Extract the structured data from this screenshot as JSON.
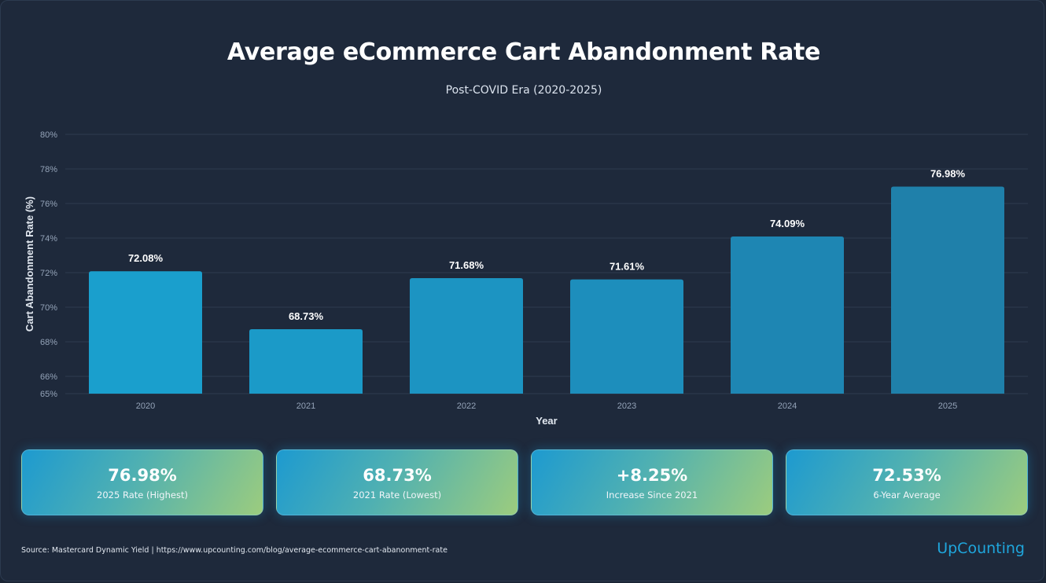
{
  "chart_data": {
    "type": "bar",
    "title": "Average eCommerce Cart Abandonment Rate",
    "subtitle": "Post-COVID Era (2020-2025)",
    "xlabel": "Year",
    "ylabel": "Cart Abandonment Rate (%)",
    "categories": [
      "2020",
      "2021",
      "2022",
      "2023",
      "2024",
      "2025"
    ],
    "values": [
      72.08,
      68.73,
      71.68,
      71.61,
      74.09,
      76.98
    ],
    "value_labels": [
      "72.08%",
      "68.73%",
      "71.68%",
      "71.61%",
      "74.09%",
      "76.98%"
    ],
    "ylim": [
      65,
      80
    ],
    "yticks": [
      65,
      66,
      68,
      70,
      72,
      74,
      76,
      78,
      80
    ],
    "ytick_labels": [
      "65%",
      "66%",
      "68%",
      "70%",
      "72%",
      "74%",
      "76%",
      "78%",
      "80%"
    ],
    "grid": true,
    "bar_colors": [
      "#1a9fcd",
      "#1b9ac8",
      "#1c94c2",
      "#1d8ebc",
      "#1e86b3",
      "#1f80aa"
    ]
  },
  "stats": [
    {
      "value": "76.98%",
      "label": "2025 Rate (Highest)"
    },
    {
      "value": "68.73%",
      "label": "2021 Rate (Lowest)"
    },
    {
      "value": "+8.25%",
      "label": "Increase Since 2021"
    },
    {
      "value": "72.53%",
      "label": "6-Year Average"
    }
  ],
  "footer": {
    "source": "Source: Mastercard Dynamic Yield | https://www.upcounting.com/blog/average-ecommerce-cart-abanonment-rate",
    "brand": "UpCounting"
  }
}
